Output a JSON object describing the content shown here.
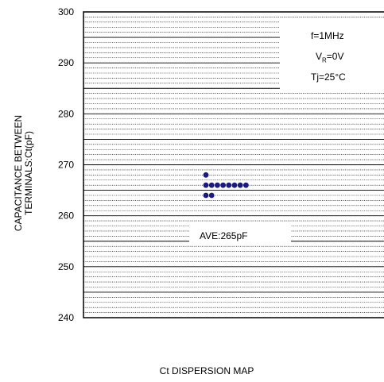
{
  "chart_data": {
    "type": "scatter",
    "title": "Ct DISPERSION MAP",
    "ylabel": [
      "CAPACITANCE BETWEEN",
      "TERMINALS:Ct(pF)"
    ],
    "ylim": [
      240,
      300
    ],
    "yticks": [
      240,
      250,
      260,
      270,
      280,
      290,
      300
    ],
    "grid": true,
    "annotations": {
      "frequency": "f=1MHz",
      "voltage_prefix": "V",
      "voltage_sub": "R",
      "voltage_suffix": "=0V",
      "temperature": "Tj=25°C",
      "average": "AVE:265pF"
    },
    "points": [
      {
        "y": 268,
        "count": 1
      },
      {
        "y": 266,
        "count": 8
      },
      {
        "y": 264,
        "count": 2
      }
    ],
    "average_value": 265
  }
}
